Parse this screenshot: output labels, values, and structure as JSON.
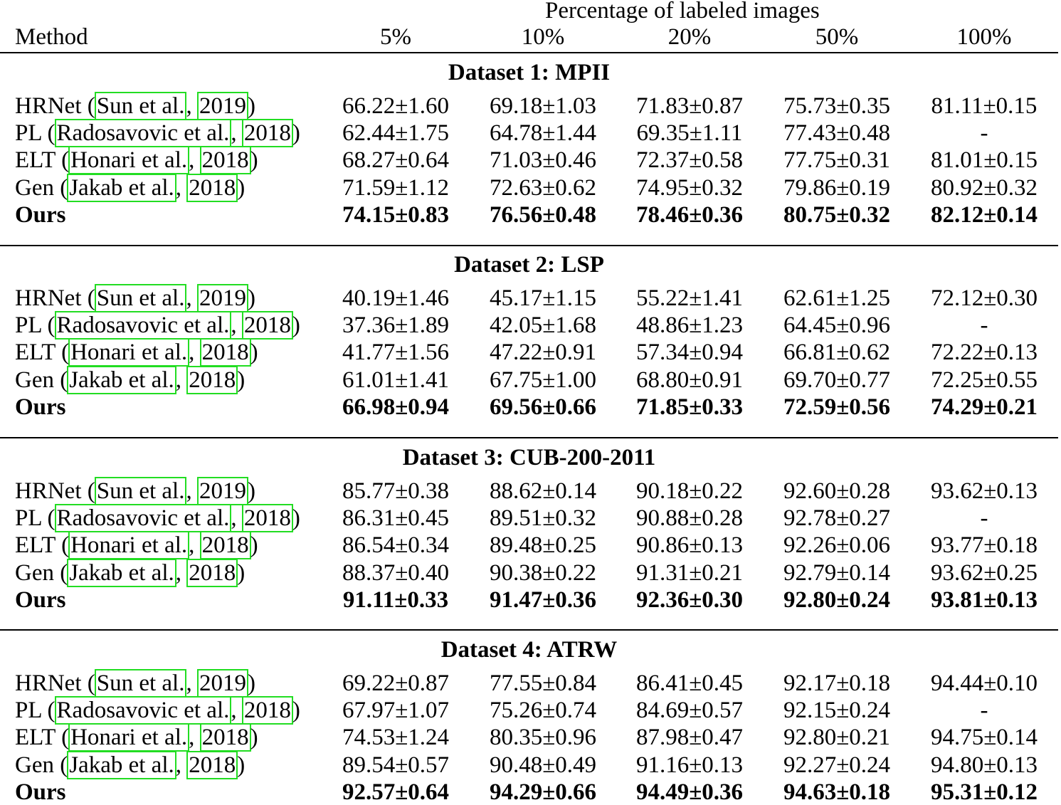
{
  "header": {
    "group_label": "Percentage of labeled images",
    "method_label": "Method",
    "columns": [
      "5%",
      "10%",
      "20%",
      "50%",
      "100%"
    ]
  },
  "sections": [
    {
      "title": "Dataset 1: MPII",
      "rows": [
        {
          "prefix": "HRNet (",
          "cite_author": "Sun et al.",
          "sep": ", ",
          "cite_year": "2019",
          "suffix": ")",
          "values": [
            "66.22±1.60",
            "69.18±1.03",
            "71.83±0.87",
            "75.73±0.35",
            "81.11±0.15"
          ]
        },
        {
          "prefix": "PL (",
          "cite_author": "Radosavovic et al.",
          "sep": ", ",
          "cite_year": "2018",
          "suffix": ")",
          "values": [
            "62.44±1.75",
            "64.78±1.44",
            "69.35±1.11",
            "77.43±0.48",
            "-"
          ]
        },
        {
          "prefix": "ELT (",
          "cite_author": "Honari et al.",
          "sep": ", ",
          "cite_year": "2018",
          "suffix": ")",
          "values": [
            "68.27±0.64",
            "71.03±0.46",
            "72.37±0.58",
            "77.75±0.31",
            "81.01±0.15"
          ]
        },
        {
          "prefix": "Gen (",
          "cite_author": "Jakab et al.",
          "sep": ", ",
          "cite_year": "2018",
          "suffix": ")",
          "values": [
            "71.59±1.12",
            "72.63±0.62",
            "74.95±0.32",
            "79.86±0.19",
            "80.92±0.32"
          ]
        },
        {
          "label": "Ours",
          "values": [
            "74.15±0.83",
            "76.56±0.48",
            "78.46±0.36",
            "80.75±0.32",
            "82.12±0.14"
          ]
        }
      ]
    },
    {
      "title": "Dataset 2: LSP",
      "rows": [
        {
          "prefix": "HRNet (",
          "cite_author": "Sun et al.",
          "sep": ", ",
          "cite_year": "2019",
          "suffix": ")",
          "values": [
            "40.19±1.46",
            "45.17±1.15",
            "55.22±1.41",
            "62.61±1.25",
            "72.12±0.30"
          ]
        },
        {
          "prefix": "PL (",
          "cite_author": "Radosavovic et al.",
          "sep": ", ",
          "cite_year": "2018",
          "suffix": ")",
          "values": [
            "37.36±1.89",
            "42.05±1.68",
            "48.86±1.23",
            "64.45±0.96",
            "-"
          ]
        },
        {
          "prefix": "ELT (",
          "cite_author": "Honari et al.",
          "sep": ", ",
          "cite_year": "2018",
          "suffix": ")",
          "values": [
            "41.77±1.56",
            "47.22±0.91",
            "57.34±0.94",
            "66.81±0.62",
            "72.22±0.13"
          ]
        },
        {
          "prefix": "Gen (",
          "cite_author": "Jakab et al.",
          "sep": ", ",
          "cite_year": "2018",
          "suffix": ")",
          "values": [
            "61.01±1.41",
            "67.75±1.00",
            "68.80±0.91",
            "69.70±0.77",
            "72.25±0.55"
          ]
        },
        {
          "label": "Ours",
          "values": [
            "66.98±0.94",
            "69.56±0.66",
            "71.85±0.33",
            "72.59±0.56",
            "74.29±0.21"
          ]
        }
      ]
    },
    {
      "title": "Dataset 3: CUB-200-2011",
      "rows": [
        {
          "prefix": "HRNet (",
          "cite_author": "Sun et al.",
          "sep": ", ",
          "cite_year": "2019",
          "suffix": ")",
          "values": [
            "85.77±0.38",
            "88.62±0.14",
            "90.18±0.22",
            "92.60±0.28",
            "93.62±0.13"
          ]
        },
        {
          "prefix": "PL (",
          "cite_author": "Radosavovic et al.",
          "sep": ", ",
          "cite_year": "2018",
          "suffix": ")",
          "values": [
            "86.31±0.45",
            "89.51±0.32",
            "90.88±0.28",
            "92.78±0.27",
            "-"
          ]
        },
        {
          "prefix": "ELT (",
          "cite_author": "Honari et al.",
          "sep": ", ",
          "cite_year": "2018",
          "suffix": ")",
          "values": [
            "86.54±0.34",
            "89.48±0.25",
            "90.86±0.13",
            "92.26±0.06",
            "93.77±0.18"
          ]
        },
        {
          "prefix": "Gen (",
          "cite_author": "Jakab et al.",
          "sep": ", ",
          "cite_year": "2018",
          "suffix": ")",
          "values": [
            "88.37±0.40",
            "90.38±0.22",
            "91.31±0.21",
            "92.79±0.14",
            "93.62±0.25"
          ]
        },
        {
          "label": "Ours",
          "values": [
            "91.11±0.33",
            "91.47±0.36",
            "92.36±0.30",
            "92.80±0.24",
            "93.81±0.13"
          ]
        }
      ]
    },
    {
      "title": "Dataset 4: ATRW",
      "rows": [
        {
          "prefix": "HRNet (",
          "cite_author": "Sun et al.",
          "sep": ", ",
          "cite_year": "2019",
          "suffix": ")",
          "values": [
            "69.22±0.87",
            "77.55±0.84",
            "86.41±0.45",
            "92.17±0.18",
            "94.44±0.10"
          ]
        },
        {
          "prefix": "PL (",
          "cite_author": "Radosavovic et al.",
          "sep": ", ",
          "cite_year": "2018",
          "suffix": ")",
          "values": [
            "67.97±1.07",
            "75.26±0.74",
            "84.69±0.57",
            "92.15±0.24",
            "-"
          ]
        },
        {
          "prefix": "ELT (",
          "cite_author": "Honari et al.",
          "sep": ", ",
          "cite_year": "2018",
          "suffix": ")",
          "values": [
            "74.53±1.24",
            "80.35±0.96",
            "87.98±0.47",
            "92.80±0.21",
            "94.75±0.14"
          ]
        },
        {
          "prefix": "Gen (",
          "cite_author": "Jakab et al.",
          "sep": ", ",
          "cite_year": "2018",
          "suffix": ")",
          "values": [
            "89.54±0.57",
            "90.48±0.49",
            "91.16±0.13",
            "92.27±0.24",
            "94.80±0.13"
          ]
        },
        {
          "label": "Ours",
          "values": [
            "92.57±0.64",
            "94.29±0.66",
            "94.49±0.36",
            "94.63±0.18",
            "95.31±0.12"
          ]
        }
      ]
    }
  ],
  "colors": {
    "citation_box": "#22dd22",
    "text": "#000000"
  }
}
